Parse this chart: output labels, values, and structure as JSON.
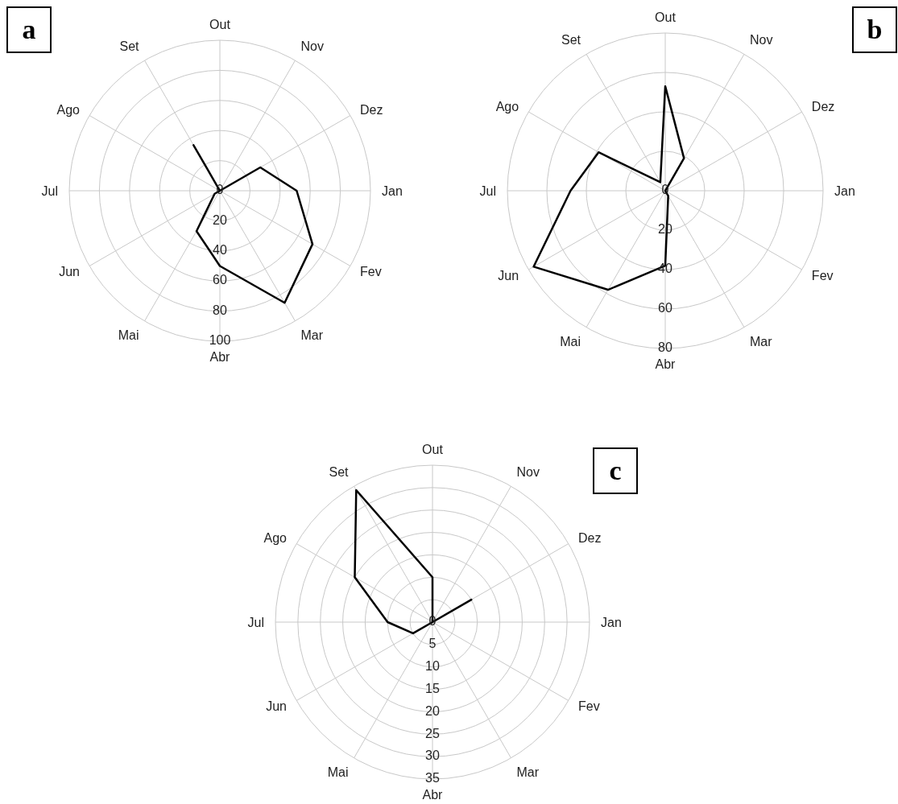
{
  "chart_data": [
    {
      "type": "radar",
      "categories": [
        "Out",
        "Nov",
        "Dez",
        "Jan",
        "Fev",
        "Mar",
        "Abr",
        "Mai",
        "Jun",
        "Jul",
        "Ago",
        "Set"
      ],
      "series": [
        {
          "color": "#000000",
          "values": [
            0,
            0,
            31,
            51,
            71,
            86,
            50,
            31,
            4,
            0,
            0,
            35
          ]
        }
      ],
      "ylim": [
        0,
        100
      ],
      "yticks": [
        0,
        20,
        40,
        60,
        80,
        100
      ],
      "grid": true,
      "annotations": [
        "a"
      ]
    },
    {
      "type": "radar",
      "categories": [
        "Out",
        "Nov",
        "Dez",
        "Jan",
        "Fev",
        "Mar",
        "Abr",
        "Mai",
        "Jun",
        "Jul",
        "Ago",
        "Set"
      ],
      "series": [
        {
          "color": "#000000",
          "values": [
            53,
            19,
            0,
            0,
            0,
            3,
            38,
            58,
            77,
            48,
            39,
            5
          ]
        }
      ],
      "ylim": [
        0,
        80
      ],
      "yticks": [
        0,
        20,
        40,
        60,
        80
      ],
      "grid": true,
      "annotations": [
        "b"
      ]
    },
    {
      "type": "radar",
      "categories": [
        "Out",
        "Nov",
        "Dez",
        "Jan",
        "Fev",
        "Mar",
        "Abr",
        "Mai",
        "Jun",
        "Jul",
        "Ago",
        "Set"
      ],
      "series": [
        {
          "color": "#000000",
          "values": [
            10,
            0,
            10,
            0,
            0,
            0,
            0,
            0,
            5,
            10,
            20,
            34
          ]
        }
      ],
      "ylim": [
        0,
        35
      ],
      "yticks": [
        0,
        5,
        10,
        15,
        20,
        25,
        30,
        35
      ],
      "grid": true,
      "annotations": [
        "c"
      ]
    }
  ]
}
